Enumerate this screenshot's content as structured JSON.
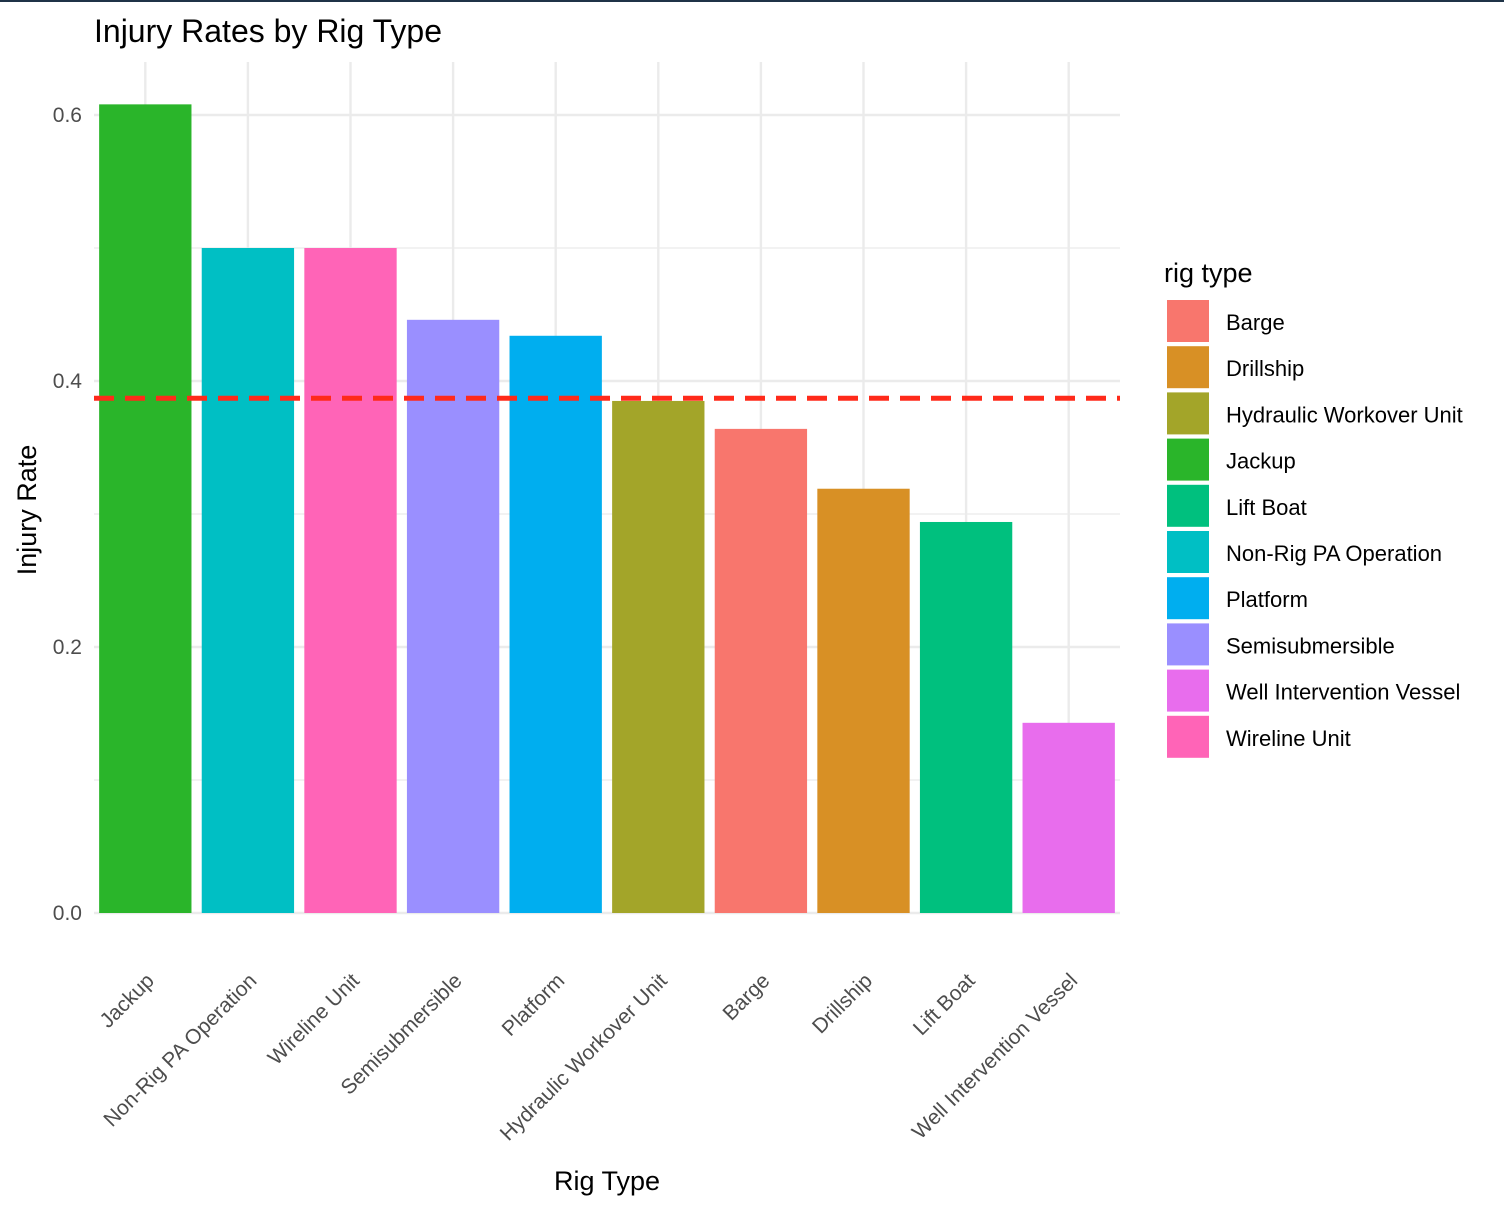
{
  "chart_data": {
    "type": "bar",
    "title": "Injury Rates by Rig Type",
    "xlabel": "Rig Type",
    "ylabel": "Injury Rate",
    "ylim": [
      0,
      0.64
    ],
    "y_ticks": [
      0.0,
      0.2,
      0.4,
      0.6
    ],
    "y_tick_labels": [
      "0.0",
      "0.2",
      "0.4",
      "0.6"
    ],
    "grid": true,
    "reference_line": {
      "value": 0.387,
      "style": "dashed",
      "color": "#ff2a1a"
    },
    "categories": [
      "Jackup",
      "Non-Rig PA Operation",
      "Wireline Unit",
      "Semisubmersible",
      "Platform",
      "Hydraulic Workover Unit",
      "Barge",
      "Drillship",
      "Lift Boat",
      "Well Intervention Vessel"
    ],
    "values": [
      0.608,
      0.5,
      0.5,
      0.446,
      0.434,
      0.385,
      0.364,
      0.319,
      0.294,
      0.143
    ],
    "bar_colors": [
      "#2ab52a",
      "#00bfc4",
      "#ff64b7",
      "#9a8fff",
      "#00aeef",
      "#a3a529",
      "#f8766d",
      "#d89025",
      "#00c07e",
      "#e86ded"
    ],
    "legend": {
      "title": "rig type",
      "position": "right",
      "items": [
        {
          "label": "Barge",
          "color": "#f8766d"
        },
        {
          "label": "Drillship",
          "color": "#d89025"
        },
        {
          "label": "Hydraulic Workover Unit",
          "color": "#a3a529"
        },
        {
          "label": "Jackup",
          "color": "#2ab52a"
        },
        {
          "label": "Lift Boat",
          "color": "#00c07e"
        },
        {
          "label": "Non-Rig PA Operation",
          "color": "#00bfc4"
        },
        {
          "label": "Platform",
          "color": "#00aeef"
        },
        {
          "label": "Semisubmersible",
          "color": "#9a8fff"
        },
        {
          "label": "Well Intervention Vessel",
          "color": "#e86ded"
        },
        {
          "label": "Wireline Unit",
          "color": "#ff64b7"
        }
      ]
    }
  }
}
